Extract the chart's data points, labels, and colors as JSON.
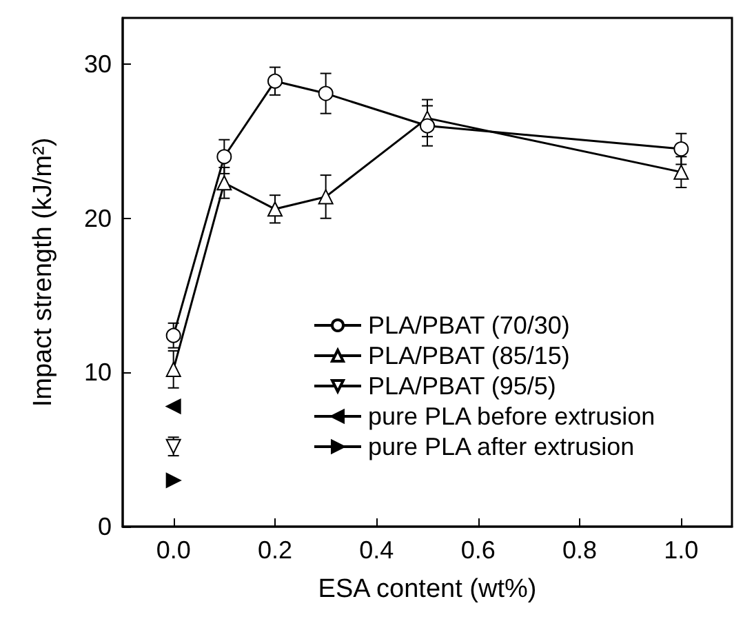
{
  "chart_data": {
    "type": "line",
    "xlabel": "ESA content (wt%)",
    "ylabel": "Impact strength (kJ/m²)",
    "xlim": [
      -0.1,
      1.1
    ],
    "xticks": [
      {
        "value": 0,
        "label": "0.0"
      },
      {
        "value": 0.2,
        "label": "0.2"
      },
      {
        "value": 0.4,
        "label": "0.4"
      },
      {
        "value": 0.6,
        "label": "0.6"
      },
      {
        "value": 0.8,
        "label": "0.8"
      },
      {
        "value": 1,
        "label": "1.0"
      }
    ],
    "ylim": [
      0,
      33
    ],
    "yticks": [
      0,
      10,
      20,
      30
    ],
    "grid": false,
    "legend": "right",
    "series": [
      {
        "name": "PLA/PBAT (70/30)",
        "color": "#000000",
        "marker": "circle",
        "line_style": "solid",
        "x": [
          0,
          0.1,
          0.2,
          0.3,
          0.5,
          1.0
        ],
        "values": [
          12.4,
          24.0,
          28.9,
          28.1,
          26.0,
          24.5
        ],
        "errors": [
          0.8,
          1.1,
          0.9,
          1.3,
          1.3,
          1.0
        ]
      },
      {
        "name": "PLA/PBAT (85/15)",
        "color": "#000000",
        "marker": "triangle",
        "line_style": "solid",
        "x": [
          0,
          0.1,
          0.2,
          0.3,
          0.5,
          1.0
        ],
        "values": [
          10.2,
          22.3,
          20.6,
          21.4,
          26.5,
          23.0
        ],
        "errors": [
          1.2,
          1.0,
          0.9,
          1.4,
          1.2,
          1.0
        ]
      },
      {
        "name": "PLA/PBAT (95/5)",
        "color": "#000000",
        "marker": "triangle_down",
        "line_style": "solid",
        "x": [
          0
        ],
        "values": [
          5.2
        ],
        "errors": [
          0.6
        ]
      },
      {
        "name": "pure PLA before extrusion",
        "color": "#000000",
        "marker": "triangle_left",
        "line_style": "solid",
        "x": [
          0
        ],
        "values": [
          7.8
        ]
      },
      {
        "name": "pure PLA after extrusion",
        "color": "#000000",
        "marker": "triangle_right",
        "line_style": "solid",
        "x": [
          0
        ],
        "values": [
          3.0
        ]
      }
    ]
  }
}
